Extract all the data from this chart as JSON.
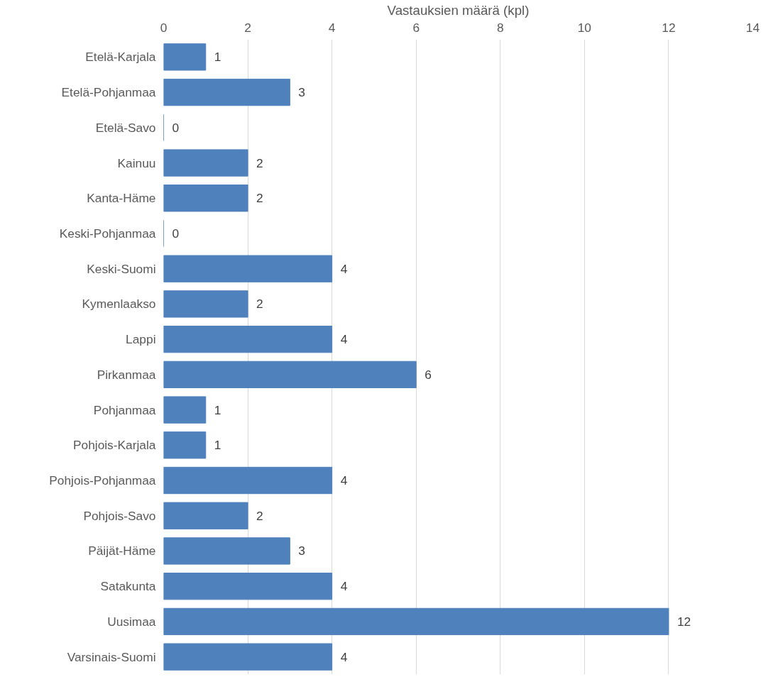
{
  "chart_data": {
    "type": "bar",
    "orientation": "horizontal",
    "xlabel": "Vastauksien määrä (kpl)",
    "categories": [
      "Etelä-Karjala",
      "Etelä-Pohjanmaa",
      "Etelä-Savo",
      "Kainuu",
      "Kanta-Häme",
      "Keski-Pohjanmaa",
      "Keski-Suomi",
      "Kymenlaakso",
      "Lappi",
      "Pirkanmaa",
      "Pohjanmaa",
      "Pohjois-Karjala",
      "Pohjois-Pohjanmaa",
      "Pohjois-Savo",
      "Päijät-Häme",
      "Satakunta",
      "Uusimaa",
      "Varsinais-Suomi"
    ],
    "values": [
      1,
      3,
      0,
      2,
      2,
      0,
      4,
      2,
      4,
      6,
      1,
      1,
      4,
      2,
      3,
      4,
      12,
      4
    ],
    "color": "#4f81bd",
    "xlim": [
      0,
      14
    ],
    "xticks": [
      0,
      2,
      4,
      6,
      8,
      10,
      12,
      14
    ],
    "grid": "x",
    "data_labels": true
  }
}
